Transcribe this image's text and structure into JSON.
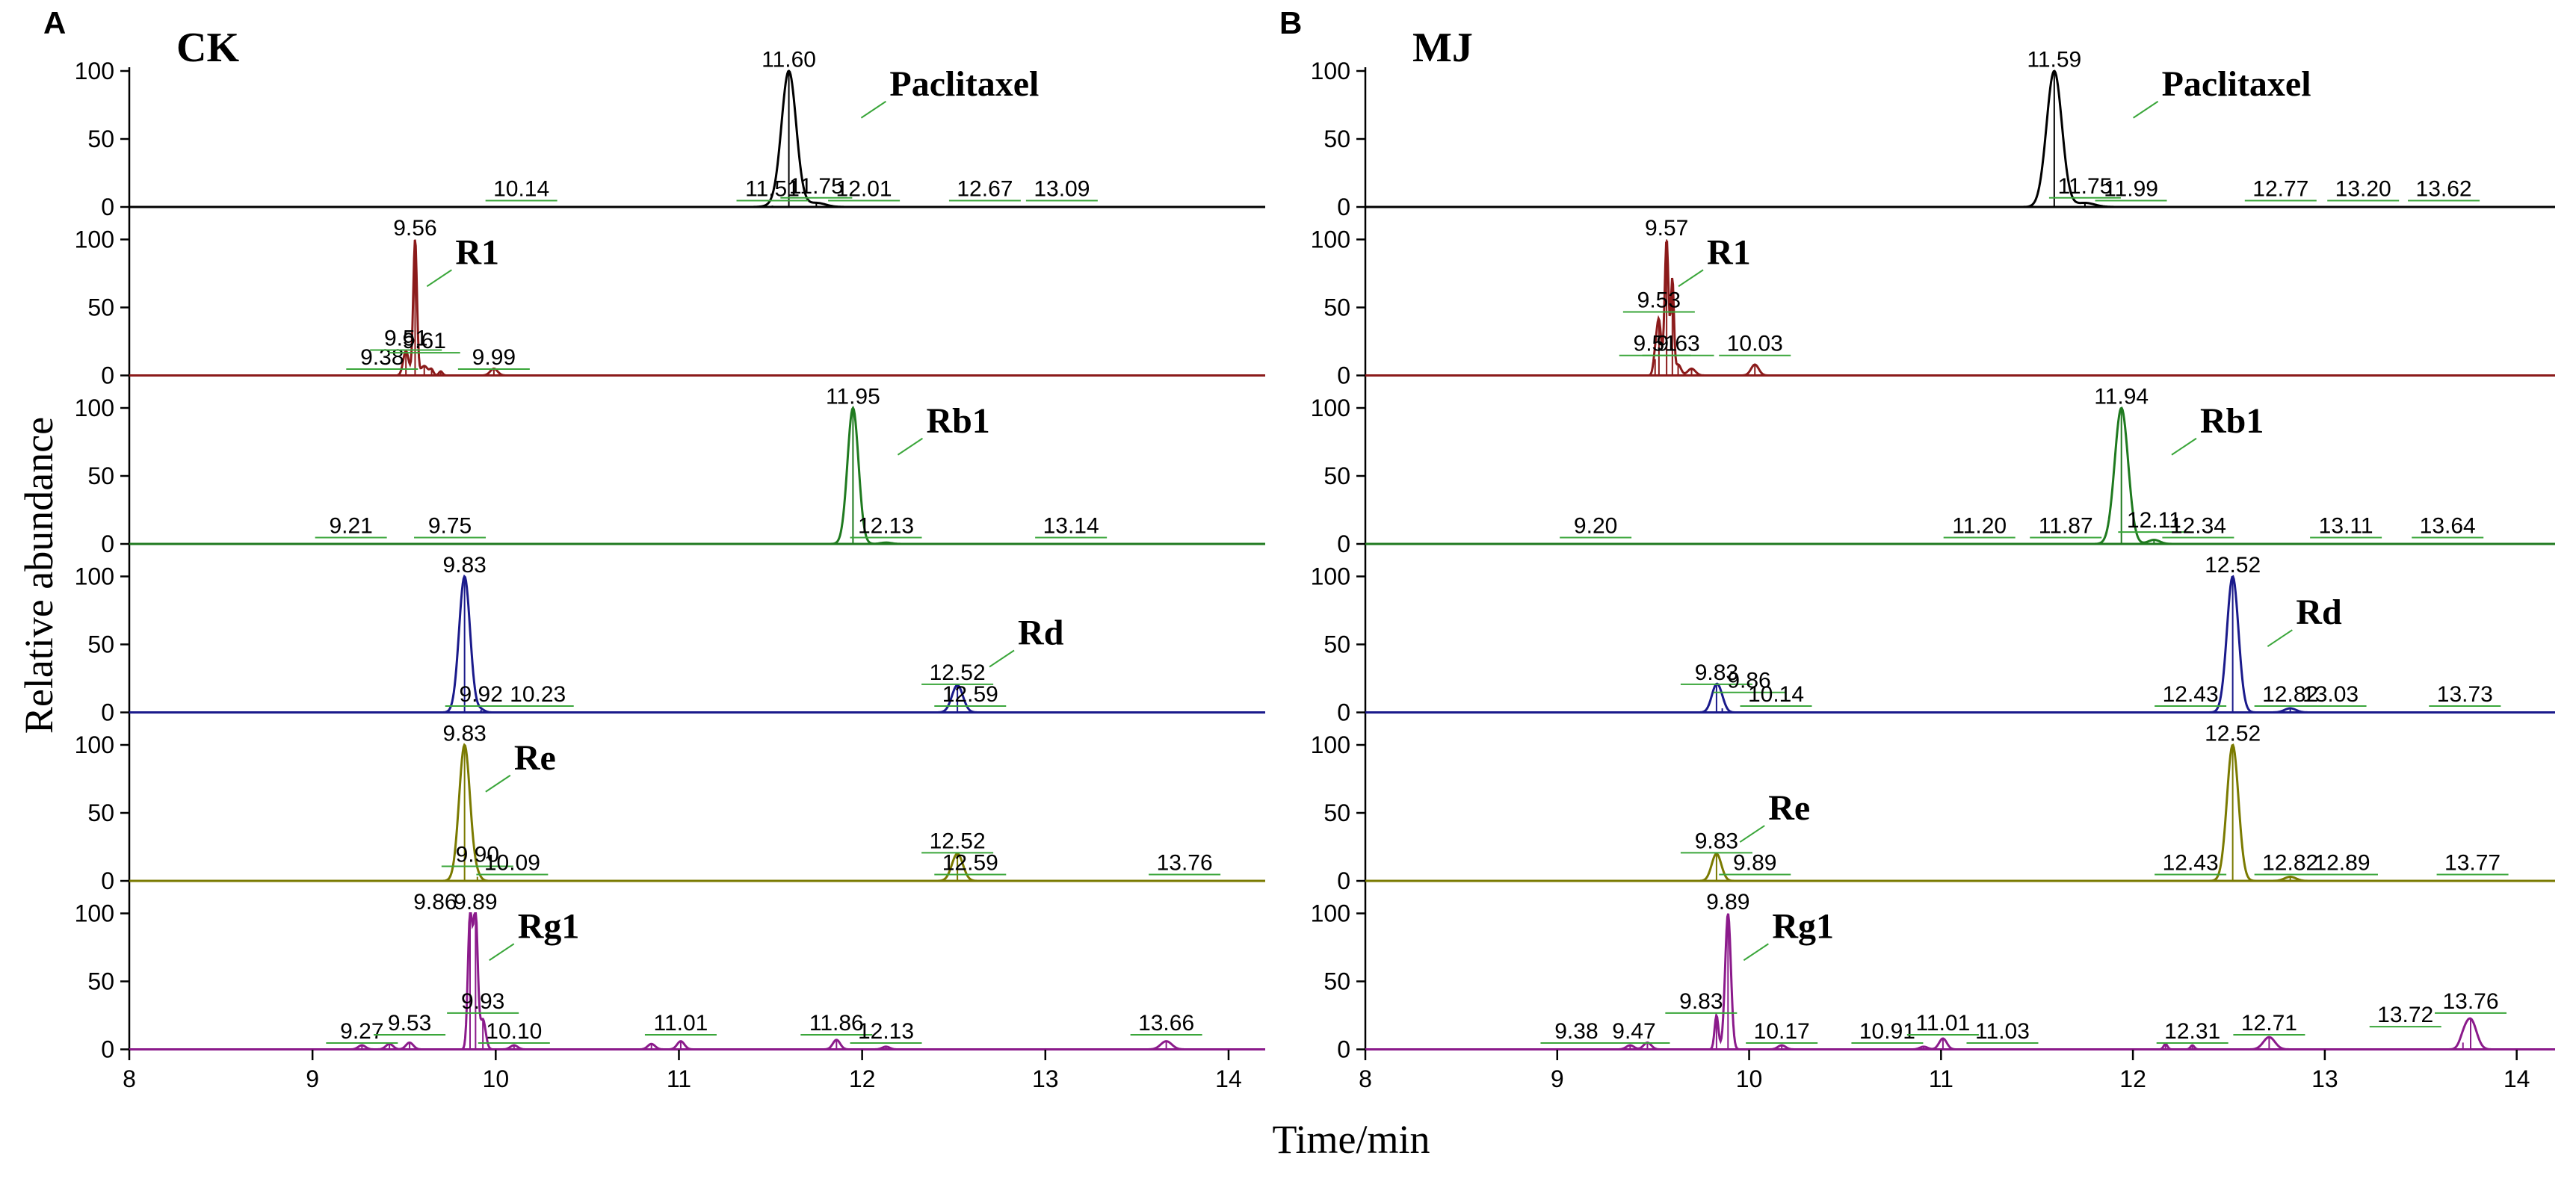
{
  "figure": {
    "y_axis_title": "Relative abundance",
    "x_axis_title": "Time/min"
  },
  "chart_data": [
    {
      "type": "line",
      "panel_letter": "A",
      "panel_title": "CK",
      "xlabel": "Time/min",
      "ylabel": "Relative abundance",
      "xlim": [
        8,
        14.2
      ],
      "x_ticks": [
        "8",
        "9",
        "10",
        "11",
        "12",
        "13",
        "14"
      ],
      "ylim": [
        0,
        100
      ],
      "y_ticks": [
        "0",
        "50",
        "100"
      ],
      "traces": [
        {
          "compound": "Paclitaxel",
          "color": "#000000",
          "peaks": [
            {
              "rt": 11.6,
              "height": 100,
              "width": 0.04
            },
            {
              "rt": 11.75,
              "height": 3,
              "width": 0.05
            },
            {
              "rt": 11.51,
              "height": 1,
              "width": 0.04
            }
          ],
          "peak_labels": [
            {
              "text": "11.60",
              "x": 11.6,
              "y": 103
            },
            {
              "text": "10.14",
              "x": 10.14,
              "y": 8
            },
            {
              "text": "11.51",
              "x": 11.51,
              "y": 8
            },
            {
              "text": "11.75",
              "x": 11.75,
              "y": 10
            },
            {
              "text": "12.01",
              "x": 12.01,
              "y": 8
            },
            {
              "text": "12.67",
              "x": 12.67,
              "y": 8
            },
            {
              "text": "13.09",
              "x": 13.09,
              "y": 8
            }
          ],
          "name_label": {
            "text": "Paclitaxel",
            "x": 12.15,
            "y": 82
          }
        },
        {
          "compound": "R1",
          "color": "#8B1A1A",
          "peaks": [
            {
              "rt": 9.56,
              "height": 100,
              "width": 0.01
            },
            {
              "rt": 9.51,
              "height": 18,
              "width": 0.015
            },
            {
              "rt": 9.61,
              "height": 7,
              "width": 0.02
            },
            {
              "rt": 9.99,
              "height": 5,
              "width": 0.02
            },
            {
              "rt": 9.65,
              "height": 4,
              "width": 0.01
            },
            {
              "rt": 9.7,
              "height": 3,
              "width": 0.01
            }
          ],
          "peak_labels": [
            {
              "text": "9.56",
              "x": 9.56,
              "y": 103
            },
            {
              "text": "9.38",
              "x": 9.38,
              "y": 8
            },
            {
              "text": "9.51",
              "x": 9.51,
              "y": 22
            },
            {
              "text": "9.61",
              "x": 9.61,
              "y": 20
            },
            {
              "text": "9.99",
              "x": 9.99,
              "y": 8
            }
          ],
          "name_label": {
            "text": "R1",
            "x": 9.78,
            "y": 82
          }
        },
        {
          "compound": "Rb1",
          "color": "#1F7A1F",
          "peaks": [
            {
              "rt": 11.95,
              "height": 100,
              "width": 0.03
            },
            {
              "rt": 12.13,
              "height": 1,
              "width": 0.03
            }
          ],
          "peak_labels": [
            {
              "text": "11.95",
              "x": 11.95,
              "y": 103
            },
            {
              "text": "9.21",
              "x": 9.21,
              "y": 8
            },
            {
              "text": "9.75",
              "x": 9.75,
              "y": 8
            },
            {
              "text": "12.13",
              "x": 12.13,
              "y": 8
            },
            {
              "text": "13.14",
              "x": 13.14,
              "y": 8
            }
          ],
          "name_label": {
            "text": "Rb1",
            "x": 12.35,
            "y": 82
          }
        },
        {
          "compound": "Rd",
          "color": "#1A1A8B",
          "peaks": [
            {
              "rt": 9.83,
              "height": 100,
              "width": 0.03
            },
            {
              "rt": 12.52,
              "height": 20,
              "width": 0.03
            },
            {
              "rt": 9.92,
              "height": 2,
              "width": 0.02
            }
          ],
          "peak_labels": [
            {
              "text": "9.83",
              "x": 9.83,
              "y": 103
            },
            {
              "text": "9.92",
              "x": 9.92,
              "y": 8
            },
            {
              "text": "10.23",
              "x": 10.23,
              "y": 8
            },
            {
              "text": "12.52",
              "x": 12.52,
              "y": 24
            },
            {
              "text": "12.59",
              "x": 12.59,
              "y": 8
            }
          ],
          "name_label": {
            "text": "Rd",
            "x": 12.85,
            "y": 50
          }
        },
        {
          "compound": "Re",
          "color": "#7A7A00",
          "peaks": [
            {
              "rt": 9.83,
              "height": 100,
              "width": 0.03
            },
            {
              "rt": 12.52,
              "height": 20,
              "width": 0.03
            },
            {
              "rt": 9.9,
              "height": 3,
              "width": 0.02
            }
          ],
          "peak_labels": [
            {
              "text": "9.83",
              "x": 9.83,
              "y": 103
            },
            {
              "text": "9.90",
              "x": 9.9,
              "y": 14
            },
            {
              "text": "10.09",
              "x": 10.09,
              "y": 8
            },
            {
              "text": "12.52",
              "x": 12.52,
              "y": 24
            },
            {
              "text": "12.59",
              "x": 12.59,
              "y": 8
            },
            {
              "text": "13.76",
              "x": 13.76,
              "y": 8
            }
          ],
          "name_label": {
            "text": "Re",
            "x": 10.1,
            "y": 82
          }
        },
        {
          "compound": "Rg1",
          "color": "#8B1A8B",
          "peaks": [
            {
              "rt": 9.89,
              "height": 100,
              "width": 0.012
            },
            {
              "rt": 9.86,
              "height": 98,
              "width": 0.012
            },
            {
              "rt": 9.93,
              "height": 22,
              "width": 0.015
            },
            {
              "rt": 11.86,
              "height": 7,
              "width": 0.02
            },
            {
              "rt": 11.01,
              "height": 6,
              "width": 0.02
            },
            {
              "rt": 13.66,
              "height": 6,
              "width": 0.03
            },
            {
              "rt": 9.53,
              "height": 5,
              "width": 0.02
            },
            {
              "rt": 9.42,
              "height": 4,
              "width": 0.02
            },
            {
              "rt": 9.27,
              "height": 3,
              "width": 0.02
            },
            {
              "rt": 10.85,
              "height": 4,
              "width": 0.02
            },
            {
              "rt": 12.13,
              "height": 2,
              "width": 0.02
            },
            {
              "rt": 10.1,
              "height": 3,
              "width": 0.02
            }
          ],
          "peak_labels": [
            {
              "text": "9.89",
              "x": 9.89,
              "y": 103
            },
            {
              "text": "9.86",
              "x": 9.67,
              "y": 103
            },
            {
              "text": "9.27",
              "x": 9.27,
              "y": 8
            },
            {
              "text": "9.53",
              "x": 9.53,
              "y": 14
            },
            {
              "text": "9.93",
              "x": 9.93,
              "y": 30
            },
            {
              "text": "10.10",
              "x": 10.1,
              "y": 8
            },
            {
              "text": "11.01",
              "x": 11.01,
              "y": 14
            },
            {
              "text": "11.86",
              "x": 11.86,
              "y": 14
            },
            {
              "text": "12.13",
              "x": 12.13,
              "y": 8
            },
            {
              "text": "13.66",
              "x": 13.66,
              "y": 14
            }
          ],
          "name_label": {
            "text": "Rg1",
            "x": 10.12,
            "y": 82
          }
        }
      ]
    },
    {
      "type": "line",
      "panel_letter": "B",
      "panel_title": "MJ",
      "xlabel": "Time/min",
      "ylabel": "Relative abundance",
      "xlim": [
        8,
        14.2
      ],
      "x_ticks": [
        "8",
        "9",
        "10",
        "11",
        "12",
        "13",
        "14"
      ],
      "ylim": [
        0,
        100
      ],
      "y_ticks": [
        "0",
        "50",
        "100"
      ],
      "traces": [
        {
          "compound": "Paclitaxel",
          "color": "#000000",
          "peaks": [
            {
              "rt": 11.59,
              "height": 100,
              "width": 0.04
            },
            {
              "rt": 11.75,
              "height": 3,
              "width": 0.05
            }
          ],
          "peak_labels": [
            {
              "text": "11.59",
              "x": 11.59,
              "y": 103
            },
            {
              "text": "11.75",
              "x": 11.75,
              "y": 10
            },
            {
              "text": "11.99",
              "x": 11.99,
              "y": 8
            },
            {
              "text": "12.77",
              "x": 12.77,
              "y": 8
            },
            {
              "text": "13.20",
              "x": 13.2,
              "y": 8
            },
            {
              "text": "13.62",
              "x": 13.62,
              "y": 8
            }
          ],
          "name_label": {
            "text": "Paclitaxel",
            "x": 12.15,
            "y": 82
          }
        },
        {
          "compound": "R1",
          "color": "#8B1A1A",
          "peaks": [
            {
              "rt": 9.57,
              "height": 100,
              "width": 0.01
            },
            {
              "rt": 9.53,
              "height": 40,
              "width": 0.012
            },
            {
              "rt": 9.6,
              "height": 70,
              "width": 0.008
            },
            {
              "rt": 9.51,
              "height": 12,
              "width": 0.01
            },
            {
              "rt": 9.63,
              "height": 8,
              "width": 0.015
            },
            {
              "rt": 10.03,
              "height": 8,
              "width": 0.02
            },
            {
              "rt": 9.7,
              "height": 5,
              "width": 0.02
            }
          ],
          "peak_labels": [
            {
              "text": "9.57",
              "x": 9.57,
              "y": 103
            },
            {
              "text": "9.53",
              "x": 9.53,
              "y": 50
            },
            {
              "text": "9.51",
              "x": 9.51,
              "y": 18
            },
            {
              "text": "9.63",
              "x": 9.63,
              "y": 18
            },
            {
              "text": "10.03",
              "x": 10.03,
              "y": 18
            }
          ],
          "name_label": {
            "text": "R1",
            "x": 9.78,
            "y": 82
          }
        },
        {
          "compound": "Rb1",
          "color": "#1F7A1F",
          "peaks": [
            {
              "rt": 11.94,
              "height": 100,
              "width": 0.035
            },
            {
              "rt": 12.11,
              "height": 3,
              "width": 0.03
            }
          ],
          "peak_labels": [
            {
              "text": "11.94",
              "x": 11.94,
              "y": 103
            },
            {
              "text": "9.20",
              "x": 9.2,
              "y": 8
            },
            {
              "text": "11.20",
              "x": 11.2,
              "y": 8
            },
            {
              "text": "11.87",
              "x": 11.65,
              "y": 8
            },
            {
              "text": "12.11",
              "x": 12.11,
              "y": 12
            },
            {
              "text": "12.34",
              "x": 12.34,
              "y": 8
            },
            {
              "text": "13.11",
              "x": 13.11,
              "y": 8
            },
            {
              "text": "13.64",
              "x": 13.64,
              "y": 8
            }
          ],
          "name_label": {
            "text": "Rb1",
            "x": 12.35,
            "y": 82
          }
        },
        {
          "compound": "Rd",
          "color": "#1A1A8B",
          "peaks": [
            {
              "rt": 12.52,
              "height": 100,
              "width": 0.03
            },
            {
              "rt": 9.83,
              "height": 20,
              "width": 0.025
            },
            {
              "rt": 12.82,
              "height": 3,
              "width": 0.03
            },
            {
              "rt": 9.86,
              "height": 3,
              "width": 0.02
            }
          ],
          "peak_labels": [
            {
              "text": "12.52",
              "x": 12.52,
              "y": 103
            },
            {
              "text": "9.83",
              "x": 9.83,
              "y": 24
            },
            {
              "text": "9.86",
              "x": 10.0,
              "y": 18
            },
            {
              "text": "10.14",
              "x": 10.14,
              "y": 8
            },
            {
              "text": "12.43",
              "x": 12.3,
              "y": 8
            },
            {
              "text": "12.82",
              "x": 12.82,
              "y": 8
            },
            {
              "text": "13.03",
              "x": 13.03,
              "y": 8
            },
            {
              "text": "13.73",
              "x": 13.73,
              "y": 8
            }
          ],
          "name_label": {
            "text": "Rd",
            "x": 12.85,
            "y": 65
          }
        },
        {
          "compound": "Re",
          "color": "#7A7A00",
          "peaks": [
            {
              "rt": 12.52,
              "height": 100,
              "width": 0.03
            },
            {
              "rt": 9.83,
              "height": 20,
              "width": 0.025
            },
            {
              "rt": 12.82,
              "height": 3,
              "width": 0.03
            }
          ],
          "peak_labels": [
            {
              "text": "12.52",
              "x": 12.52,
              "y": 103
            },
            {
              "text": "9.83",
              "x": 9.83,
              "y": 24
            },
            {
              "text": "9.89",
              "x": 10.03,
              "y": 8
            },
            {
              "text": "12.43",
              "x": 12.3,
              "y": 8
            },
            {
              "text": "12.82",
              "x": 12.82,
              "y": 8
            },
            {
              "text": "12.89",
              "x": 13.09,
              "y": 8
            },
            {
              "text": "13.77",
              "x": 13.77,
              "y": 8
            }
          ],
          "name_label": {
            "text": "Re",
            "x": 10.1,
            "y": 45
          }
        },
        {
          "compound": "Rg1",
          "color": "#8B1A8B",
          "peaks": [
            {
              "rt": 9.89,
              "height": 100,
              "width": 0.015
            },
            {
              "rt": 9.83,
              "height": 25,
              "width": 0.01
            },
            {
              "rt": 13.76,
              "height": 22,
              "width": 0.03
            },
            {
              "rt": 13.72,
              "height": 5,
              "width": 0.02
            },
            {
              "rt": 12.71,
              "height": 9,
              "width": 0.03
            },
            {
              "rt": 11.01,
              "height": 8,
              "width": 0.02
            },
            {
              "rt": 12.17,
              "height": 4,
              "width": 0.01
            },
            {
              "rt": 12.31,
              "height": 3,
              "width": 0.01
            },
            {
              "rt": 9.47,
              "height": 5,
              "width": 0.02
            },
            {
              "rt": 9.38,
              "height": 3,
              "width": 0.02
            },
            {
              "rt": 10.17,
              "height": 3,
              "width": 0.02
            },
            {
              "rt": 10.91,
              "height": 2,
              "width": 0.02
            }
          ],
          "peak_labels": [
            {
              "text": "9.89",
              "x": 9.89,
              "y": 103
            },
            {
              "text": "9.38",
              "x": 9.1,
              "y": 8
            },
            {
              "text": "9.47",
              "x": 9.4,
              "y": 8
            },
            {
              "text": "9.83",
              "x": 9.75,
              "y": 30
            },
            {
              "text": "10.17",
              "x": 10.17,
              "y": 8
            },
            {
              "text": "10.91",
              "x": 10.72,
              "y": 8
            },
            {
              "text": "11.01",
              "x": 11.01,
              "y": 14
            },
            {
              "text": "11.03",
              "x": 11.32,
              "y": 8
            },
            {
              "text": "12.31",
              "x": 12.31,
              "y": 8
            },
            {
              "text": "12.71",
              "x": 12.71,
              "y": 14
            },
            {
              "text": "13.72",
              "x": 13.42,
              "y": 20
            },
            {
              "text": "13.76",
              "x": 13.76,
              "y": 30
            }
          ],
          "name_label": {
            "text": "Rg1",
            "x": 10.12,
            "y": 82
          }
        }
      ]
    }
  ]
}
